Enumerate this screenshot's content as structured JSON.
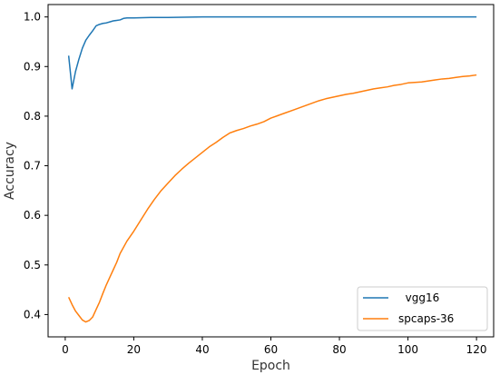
{
  "chart_data": {
    "type": "line",
    "title": "",
    "xlabel": "Epoch",
    "ylabel": "Accuracy",
    "xlim": [
      -5,
      125
    ],
    "ylim": [
      0.355,
      1.025
    ],
    "x_ticks": [
      0,
      20,
      40,
      60,
      80,
      100,
      120
    ],
    "y_ticks": [
      0.4,
      0.5,
      0.6,
      0.7,
      0.8,
      0.9,
      1.0
    ],
    "legend_position": "lower-right",
    "grid": false,
    "series": [
      {
        "name": "  vgg16",
        "color": "#1f77b4",
        "points": [
          [
            1,
            0.922
          ],
          [
            2,
            0.855
          ],
          [
            3,
            0.89
          ],
          [
            4,
            0.915
          ],
          [
            5,
            0.937
          ],
          [
            6,
            0.953
          ],
          [
            7,
            0.963
          ],
          [
            8,
            0.972
          ],
          [
            9,
            0.982
          ],
          [
            10,
            0.985
          ],
          [
            11,
            0.987
          ],
          [
            12,
            0.988
          ],
          [
            13,
            0.99
          ],
          [
            14,
            0.992
          ],
          [
            15,
            0.993
          ],
          [
            16,
            0.994
          ],
          [
            17,
            0.997
          ],
          [
            18,
            0.998
          ],
          [
            20,
            0.998
          ],
          [
            25,
            0.999
          ],
          [
            30,
            0.999
          ],
          [
            40,
            1.0
          ],
          [
            60,
            1.0
          ],
          [
            80,
            1.0
          ],
          [
            100,
            1.0
          ],
          [
            120,
            1.0
          ]
        ]
      },
      {
        "name": "spcaps-36",
        "color": "#ff7f0e",
        "points": [
          [
            1,
            0.435
          ],
          [
            2,
            0.42
          ],
          [
            3,
            0.407
          ],
          [
            4,
            0.398
          ],
          [
            5,
            0.389
          ],
          [
            6,
            0.385
          ],
          [
            7,
            0.388
          ],
          [
            8,
            0.395
          ],
          [
            9,
            0.41
          ],
          [
            10,
            0.425
          ],
          [
            11,
            0.443
          ],
          [
            12,
            0.46
          ],
          [
            13,
            0.475
          ],
          [
            14,
            0.49
          ],
          [
            15,
            0.505
          ],
          [
            16,
            0.523
          ],
          [
            18,
            0.548
          ],
          [
            20,
            0.568
          ],
          [
            22,
            0.59
          ],
          [
            24,
            0.612
          ],
          [
            26,
            0.632
          ],
          [
            28,
            0.65
          ],
          [
            30,
            0.665
          ],
          [
            32,
            0.68
          ],
          [
            34,
            0.693
          ],
          [
            36,
            0.705
          ],
          [
            38,
            0.716
          ],
          [
            40,
            0.727
          ],
          [
            42,
            0.738
          ],
          [
            44,
            0.747
          ],
          [
            46,
            0.757
          ],
          [
            48,
            0.766
          ],
          [
            50,
            0.771
          ],
          [
            52,
            0.775
          ],
          [
            54,
            0.78
          ],
          [
            56,
            0.784
          ],
          [
            58,
            0.789
          ],
          [
            60,
            0.796
          ],
          [
            62,
            0.801
          ],
          [
            64,
            0.806
          ],
          [
            66,
            0.811
          ],
          [
            68,
            0.816
          ],
          [
            70,
            0.821
          ],
          [
            72,
            0.826
          ],
          [
            74,
            0.831
          ],
          [
            76,
            0.835
          ],
          [
            78,
            0.838
          ],
          [
            80,
            0.841
          ],
          [
            82,
            0.844
          ],
          [
            84,
            0.846
          ],
          [
            86,
            0.849
          ],
          [
            88,
            0.852
          ],
          [
            90,
            0.855
          ],
          [
            92,
            0.857
          ],
          [
            94,
            0.859
          ],
          [
            96,
            0.862
          ],
          [
            98,
            0.864
          ],
          [
            100,
            0.867
          ],
          [
            102,
            0.868
          ],
          [
            104,
            0.869
          ],
          [
            106,
            0.871
          ],
          [
            108,
            0.873
          ],
          [
            110,
            0.875
          ],
          [
            112,
            0.876
          ],
          [
            114,
            0.878
          ],
          [
            116,
            0.88
          ],
          [
            118,
            0.881
          ],
          [
            120,
            0.883
          ]
        ]
      }
    ]
  }
}
